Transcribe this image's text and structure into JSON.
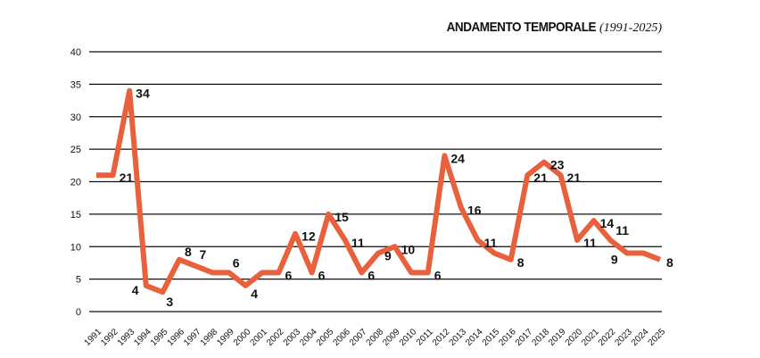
{
  "chart_data": {
    "type": "line",
    "title": "ANDAMENTO TEMPORALE",
    "subtitle": "(1991-2025)",
    "xlabel": "",
    "ylabel": "",
    "ylim": [
      0,
      40
    ],
    "yticks": [
      0,
      5,
      10,
      15,
      20,
      25,
      30,
      35,
      40
    ],
    "grid": true,
    "color": "#E8613C",
    "x": [
      "1991",
      "1992",
      "1993",
      "1994",
      "1995",
      "1996",
      "1997",
      "1998",
      "1999",
      "2000",
      "2001",
      "2002",
      "2003",
      "2004",
      "2005",
      "2006",
      "2007",
      "2008",
      "2009",
      "2010",
      "2011",
      "2012",
      "2013",
      "2014",
      "2015",
      "2016",
      "2017",
      "2018",
      "2019",
      "2020",
      "2021",
      "2022",
      "2023",
      "2024",
      "2025"
    ],
    "values": [
      21,
      21,
      34,
      4,
      3,
      8,
      7,
      6,
      6,
      4,
      6,
      6,
      12,
      6,
      15,
      11,
      6,
      9,
      10,
      6,
      6,
      24,
      16,
      11,
      9,
      8,
      21,
      23,
      21,
      11,
      14,
      11,
      9,
      9,
      8
    ],
    "data_labels": [
      "",
      "21",
      "34",
      "4",
      "3",
      "8",
      "7",
      "",
      "6",
      "4",
      "",
      "6",
      "12",
      "6",
      "15",
      "11",
      "6",
      "9",
      "10",
      "",
      "6",
      "24",
      "16",
      "11",
      "",
      "8",
      "21",
      "23",
      "21",
      "11",
      "14",
      "11",
      "9",
      "",
      "8"
    ]
  }
}
